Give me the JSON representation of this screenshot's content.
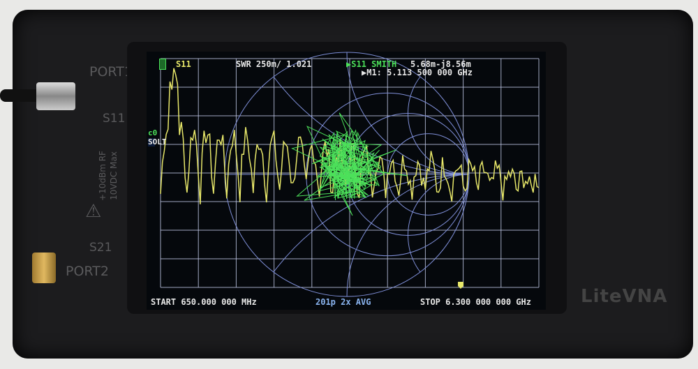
{
  "device": {
    "brand": "LiteVNA",
    "port1_label": "PORT1",
    "port2_label": "PORT2",
    "s11_label": "S11",
    "s21_label": "S21",
    "rating_line1": "+10dBm RF",
    "rating_line2": "10VDC Max"
  },
  "screen": {
    "trace1_label": "S11",
    "trace1_format": "SWR 250m/ 1.021",
    "trace2_label": "▶S11 SMITH",
    "trace2_value": "5.68m-j8.56m",
    "marker": "▶M1: 5.113 500 000 GHz",
    "cal_status": "c0",
    "cal_type": "SOLT",
    "start": "START  650.000 000 MHz",
    "points_avg": "201p  2x AVG",
    "stop": "STOP 6.300 000 000 GHz",
    "marker_flag": "1",
    "colors": {
      "trace1": "#e8e86a",
      "trace2": "#4ce05a",
      "grid": "#7f8fd8",
      "background": "#05080c"
    },
    "icons": {
      "battery": "battery-icon"
    }
  }
}
